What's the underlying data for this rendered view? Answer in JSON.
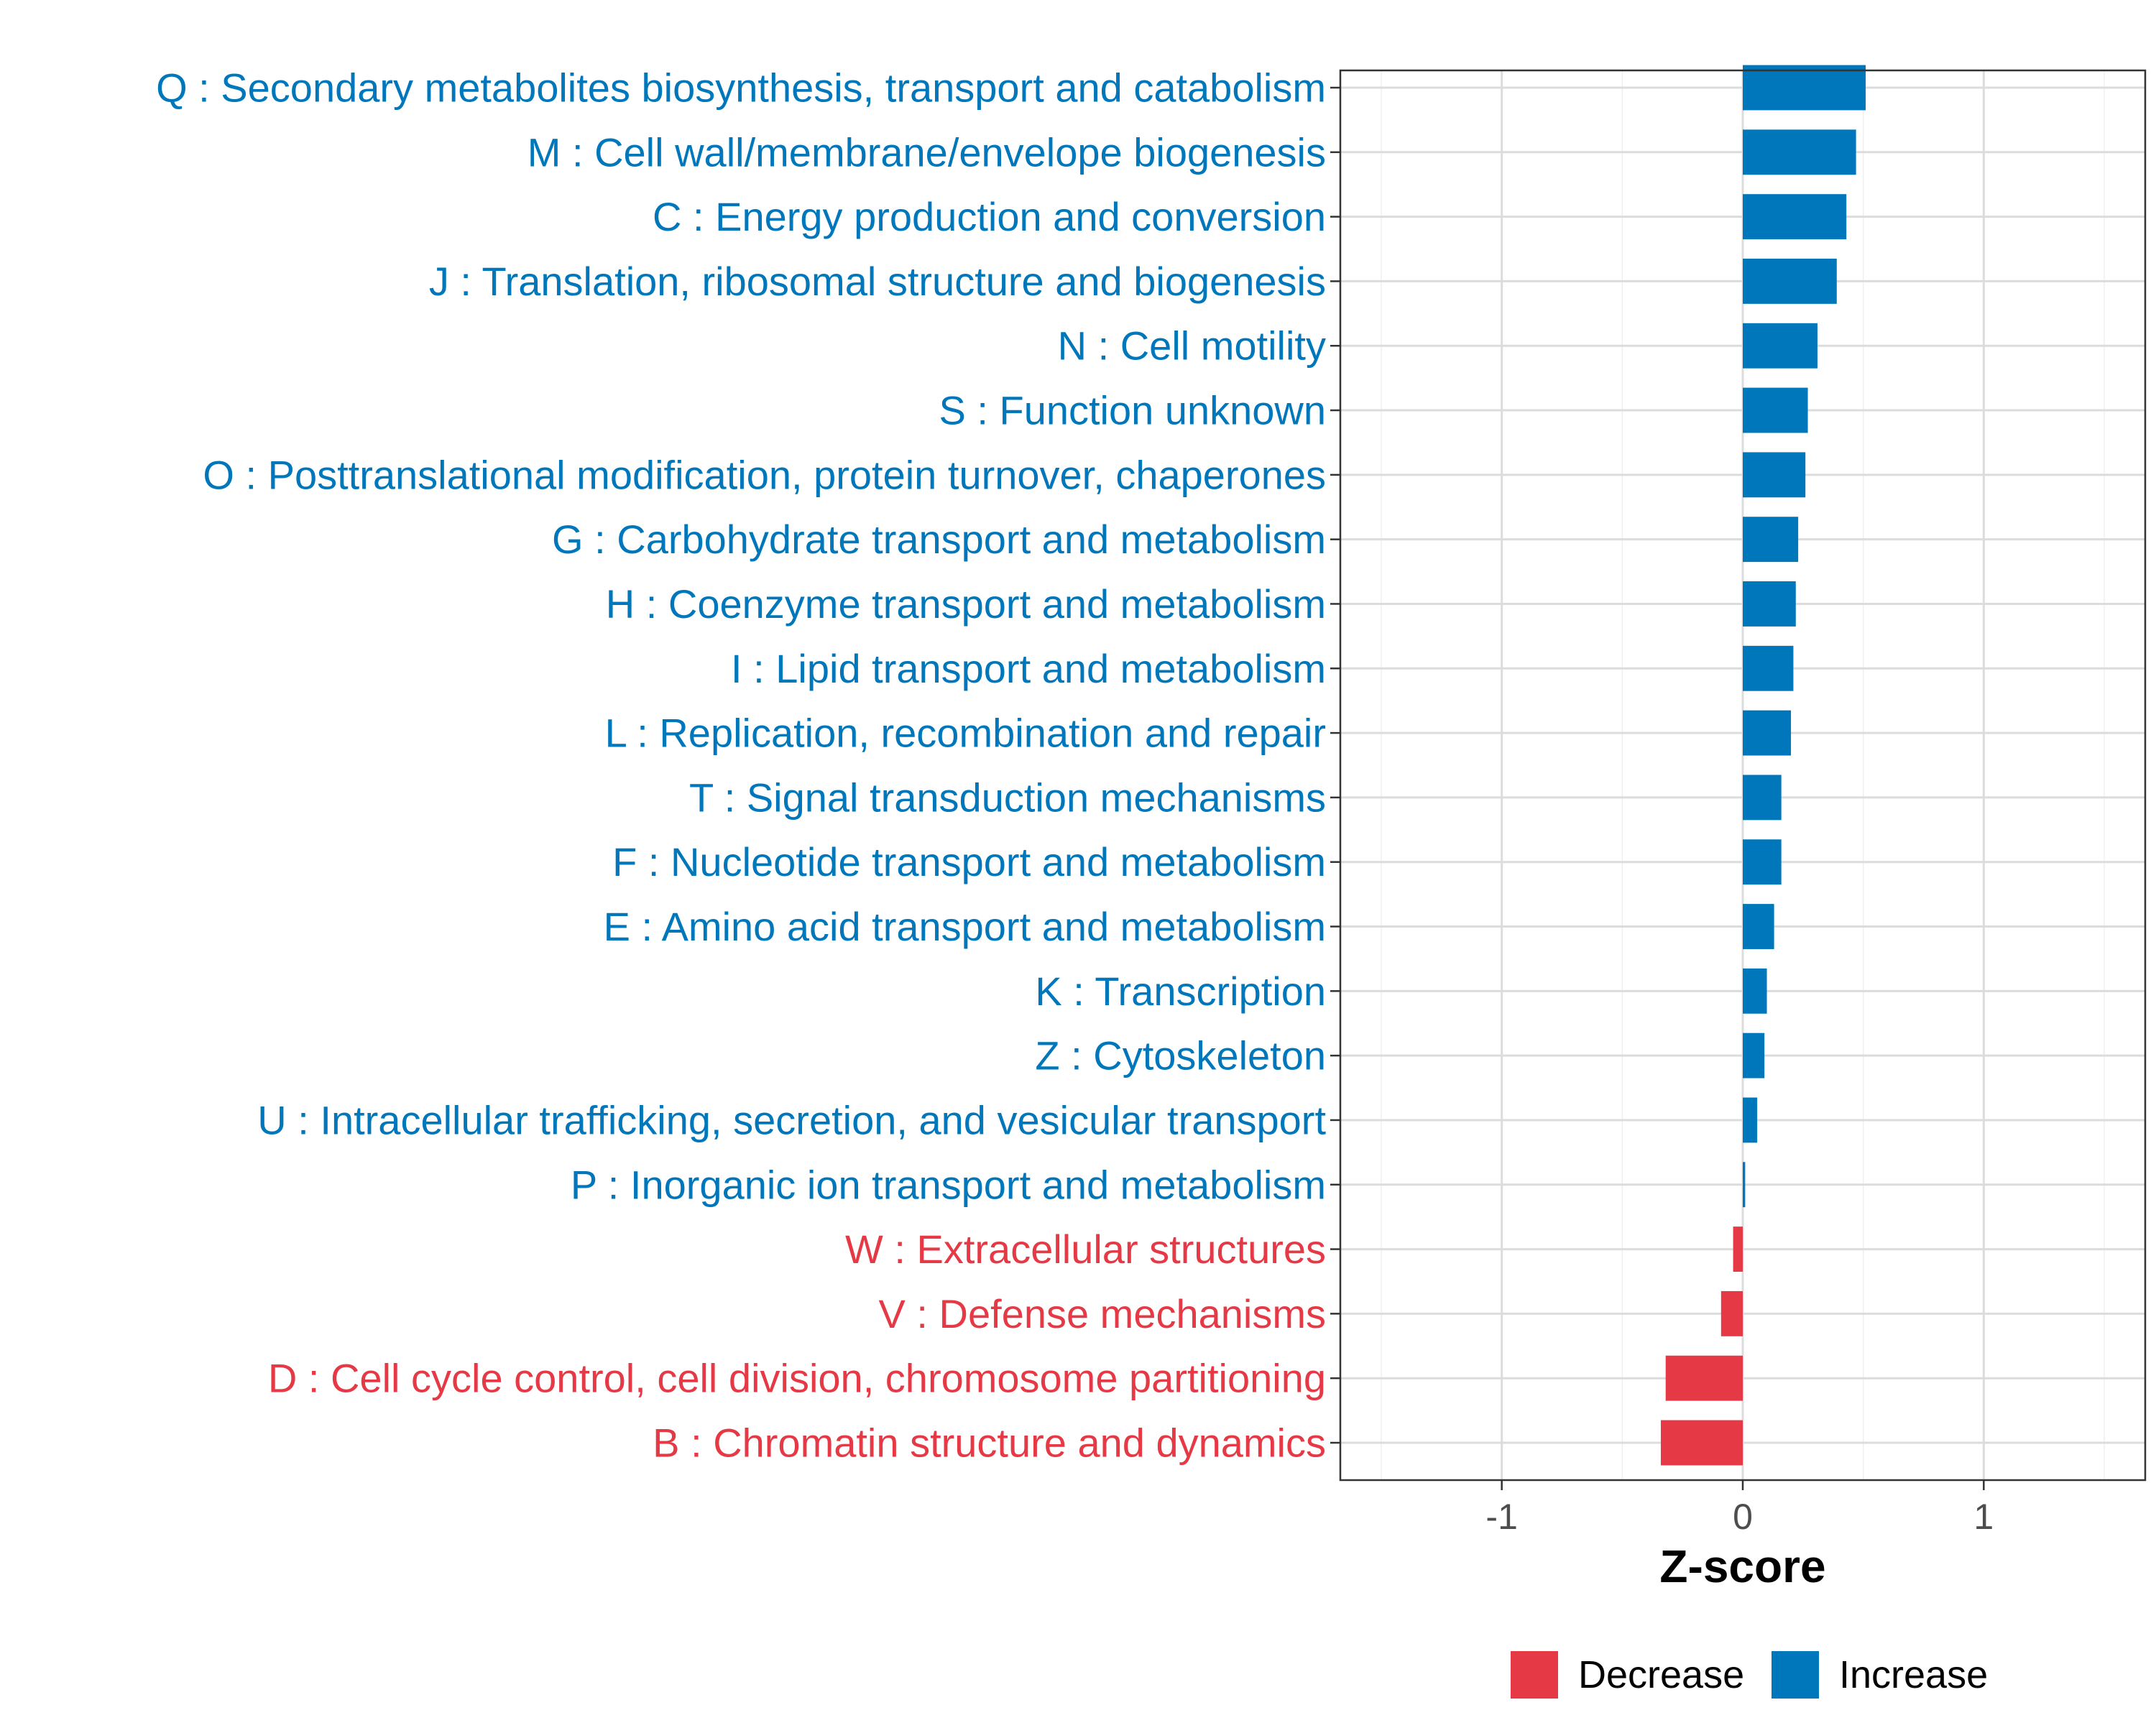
{
  "chart_data": {
    "type": "bar",
    "orientation": "horizontal",
    "title": "",
    "xlabel": "Z-score",
    "ylabel": "",
    "xlim": [
      -1.67,
      1.67
    ],
    "xticks": [
      -1,
      0,
      1
    ],
    "xtick_labels": [
      "-1",
      "0",
      "1"
    ],
    "grid": true,
    "legend_position": "bottom",
    "colors": {
      "Decrease": "#e63946",
      "Increase": "#0077bb"
    },
    "legend": [
      {
        "label": "Decrease",
        "color": "#e63946"
      },
      {
        "label": "Increase",
        "color": "#0077bb"
      }
    ],
    "categories": [
      "Q : Secondary metabolites biosynthesis, transport and catabolism",
      "M : Cell wall/membrane/envelope biogenesis",
      "C : Energy production and conversion",
      "J : Translation, ribosomal structure and biogenesis",
      "N : Cell motility",
      "S : Function unknown",
      "O : Posttranslational modification, protein turnover, chaperones",
      "G : Carbohydrate transport and metabolism",
      "H : Coenzyme transport and metabolism",
      "I : Lipid transport and metabolism",
      "L : Replication, recombination and repair",
      "T : Signal transduction mechanisms",
      "F : Nucleotide transport and metabolism",
      "E : Amino acid transport and metabolism",
      "K : Transcription",
      "Z : Cytoskeleton",
      "U : Intracellular trafficking, secretion, and vesicular transport",
      "P : Inorganic ion transport and metabolism",
      "W : Extracellular structures",
      "V : Defense mechanisms",
      "D : Cell cycle control, cell division, chromosome partitioning",
      "B : Chromatin structure and dynamics"
    ],
    "values": [
      0.51,
      0.47,
      0.43,
      0.39,
      0.31,
      0.27,
      0.26,
      0.23,
      0.22,
      0.21,
      0.2,
      0.16,
      0.16,
      0.13,
      0.1,
      0.09,
      0.06,
      0.01,
      -0.04,
      -0.09,
      -0.32,
      -0.34
    ],
    "groups": [
      "Increase",
      "Increase",
      "Increase",
      "Increase",
      "Increase",
      "Increase",
      "Increase",
      "Increase",
      "Increase",
      "Increase",
      "Increase",
      "Increase",
      "Increase",
      "Increase",
      "Increase",
      "Increase",
      "Increase",
      "Increase",
      "Decrease",
      "Decrease",
      "Decrease",
      "Decrease"
    ]
  }
}
